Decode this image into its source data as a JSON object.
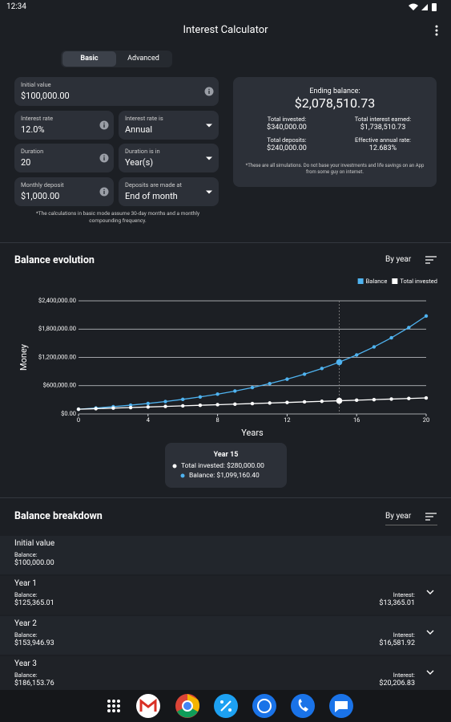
{
  "status_bar": {
    "time": "12:34"
  },
  "app_bar": {
    "title": "Interest Calculator"
  },
  "tabs": [
    "Basic",
    "Advanced"
  ],
  "form": {
    "fields": [
      {
        "label": "Initial value",
        "value": "$100,000.00"
      },
      {
        "label": "Interest rate",
        "value": "12.0%"
      },
      {
        "label": "Interest rate is",
        "value": "Annual"
      },
      {
        "label": "Duration",
        "value": "20"
      },
      {
        "label": "Duration is in",
        "value": "Year(s)"
      },
      {
        "label": "Monthly deposit",
        "value": "$1,000.00"
      },
      {
        "label": "Deposits are made at",
        "value": "End of month"
      }
    ],
    "note": "*The calculations in basic mode assume 30-day months and a monthly compounding frequency."
  },
  "summary": {
    "heading": "Ending balance:",
    "ending_balance": "$2,078,510.73",
    "stats": [
      {
        "label": "Total invested:",
        "value": "$340,000.00"
      },
      {
        "label": "Total interest earned:",
        "value": "$1,738,510.73"
      },
      {
        "label": "Total deposits:",
        "value": "$240,000.00"
      },
      {
        "label": "Effective annual rate:",
        "value": "12.683%"
      }
    ],
    "note": "*These are all simulations. Do not base your investments and life savings on an App from some guy on internet."
  },
  "chart_section": {
    "title": "Balance evolution",
    "filter": "By year"
  },
  "chart_data": {
    "type": "line",
    "xlabel": "Years",
    "ylabel": "Money",
    "x": [
      0,
      1,
      2,
      3,
      4,
      5,
      6,
      7,
      8,
      9,
      10,
      11,
      12,
      13,
      14,
      15,
      16,
      17,
      18,
      19,
      20
    ],
    "series": [
      {
        "name": "Balance",
        "color": "#4fb3f0",
        "values": [
          100000,
          125365.01,
          153946.93,
          186153.76,
          222446,
          263341,
          309423,
          361349,
          419862,
          485795,
          560092,
          643810,
          738146,
          844447,
          964229,
          1099160.4,
          1251249,
          1422627,
          1615739,
          1833345,
          2078510.73
        ]
      },
      {
        "name": "Total invested",
        "color": "#ffffff",
        "values": [
          100000,
          112000,
          124000,
          136000,
          148000,
          160000,
          172000,
          184000,
          196000,
          208000,
          220000,
          232000,
          244000,
          256000,
          268000,
          280000,
          292000,
          304000,
          316000,
          328000,
          340000
        ]
      }
    ],
    "xlim": [
      0,
      20
    ],
    "xticks": [
      0,
      4,
      8,
      12,
      16,
      20
    ],
    "ylim": [
      0,
      2400000
    ],
    "yticks": [
      {
        "value": 0,
        "label": "$0.00"
      },
      {
        "value": 600000,
        "label": "$600,000.00"
      },
      {
        "value": 1200000,
        "label": "$1,200,000.00"
      },
      {
        "value": 1800000,
        "label": "$1,800,000.00"
      },
      {
        "value": 2400000,
        "label": "$2,400,000.00"
      }
    ],
    "grid": true,
    "legend": "top-right",
    "highlight_x": 15,
    "annotation": {
      "title": "Year 15",
      "lines": [
        "Total invested: $280,000.00",
        "Balance: $1,099,160.40"
      ]
    }
  },
  "breakdown": {
    "title": "Balance breakdown",
    "filter": "By year",
    "rows": [
      {
        "name": "Initial value",
        "balance_label": "Balance:",
        "balance": "$100,000.00"
      },
      {
        "name": "Year 1",
        "balance_label": "Balance:",
        "balance": "$125,365.01",
        "interest_label": "Interest:",
        "interest": "$13,365.01"
      },
      {
        "name": "Year 2",
        "balance_label": "Balance:",
        "balance": "$153,946.93",
        "interest_label": "Interest:",
        "interest": "$16,581.92"
      },
      {
        "name": "Year 3",
        "balance_label": "Balance:",
        "balance": "$186,153.76",
        "interest_label": "Interest:",
        "interest": "$20,206.83"
      }
    ]
  }
}
